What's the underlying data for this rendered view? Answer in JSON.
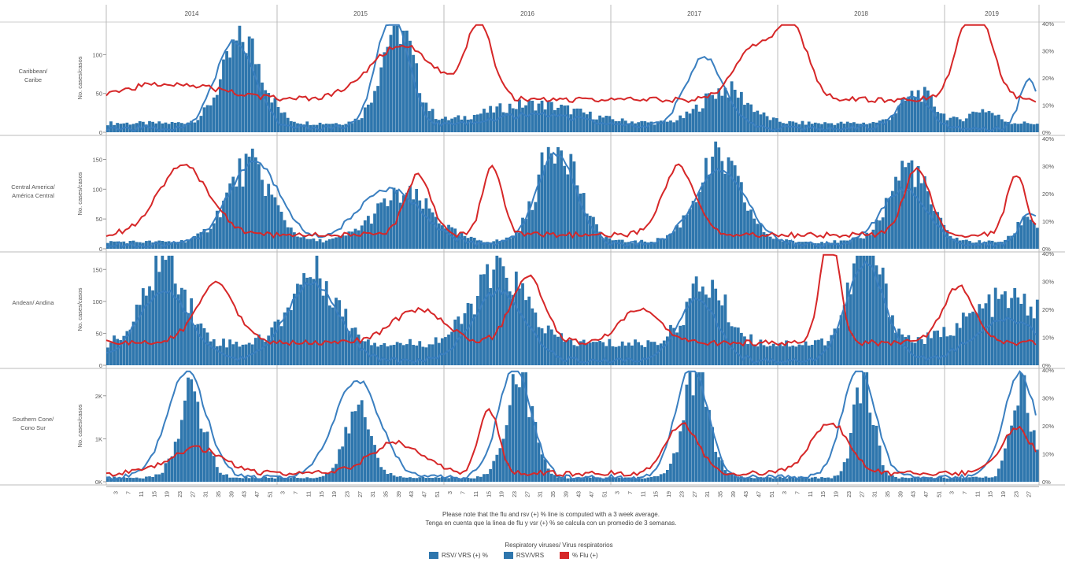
{
  "footnote": {
    "line_en": "Please note that the flu and rsv (+) % line is computed with a 3 week average.",
    "line_es": "Tenga en cuenta que la linea de flu y vsr (+) % se calcula con un promedio de 3 semanas."
  },
  "legend": {
    "title": "Respiratory viruses/ Virus respiratorios",
    "items": [
      {
        "label": "RSV/ VRS (+) %",
        "color": "#2e76ad"
      },
      {
        "label": "RSV/VRS",
        "color": "#2e76ad"
      },
      {
        "label": "% Flu (+)",
        "color": "#d62728"
      }
    ]
  },
  "colors": {
    "bars": "#2e76ad",
    "rsv_line": "#3a7fc0",
    "flu_line": "#d62728"
  },
  "chart_data": {
    "type": "bar",
    "years": [
      "2014",
      "2015",
      "2016",
      "2017",
      "2018",
      "2019"
    ],
    "week_ticks": [
      "3",
      "7",
      "11",
      "15",
      "19",
      "23",
      "27",
      "31",
      "35",
      "39",
      "43",
      "47",
      "51"
    ],
    "week_ticks_2019": [
      "3",
      "7",
      "11",
      "15",
      "19",
      "23",
      "27"
    ],
    "right_axis_ticks": [
      "0%",
      "10%",
      "20%",
      "30%",
      "40%"
    ],
    "panels": [
      {
        "region": [
          "Caribbean/",
          "Caribe"
        ],
        "ylabel": "No. cases/casos",
        "yticks": [
          "0",
          "50",
          "100"
        ],
        "ymax": 140,
        "bar_peaks": [
          [
            2014,
            42,
            110,
            6
          ],
          [
            2015,
            38,
            130,
            5
          ],
          [
            2016,
            28,
            25,
            14
          ],
          [
            2017,
            36,
            45,
            7
          ],
          [
            2018,
            44,
            40,
            5
          ],
          [
            2019,
            12,
            18,
            4
          ]
        ],
        "bar_base": 12,
        "rsv_pct_peaks": [
          [
            2014,
            40,
            32,
            6
          ],
          [
            2015,
            37,
            42,
            5
          ],
          [
            2016,
            30,
            5,
            15
          ],
          [
            2017,
            30,
            26,
            6
          ],
          [
            2018,
            43,
            12,
            5
          ],
          [
            2019,
            27,
            18,
            3
          ]
        ],
        "flu_pct_peaks": [
          [
            2014,
            20,
            6,
            15
          ],
          [
            2015,
            40,
            20,
            10
          ],
          [
            2016,
            12,
            28,
            4
          ],
          [
            2017,
            45,
            18,
            6
          ],
          [
            2018,
            5,
            27,
            5
          ],
          [
            2019,
            10,
            37,
            5
          ]
        ],
        "flu_base": 12
      },
      {
        "region": [
          "Central America/",
          "América Central"
        ],
        "ylabel": "No. cases/casos",
        "yticks": [
          "0",
          "50",
          "100",
          "150"
        ],
        "ymax": 185,
        "bar_peaks": [
          [
            2014,
            44,
            130,
            7
          ],
          [
            2015,
            40,
            80,
            9
          ],
          [
            2016,
            36,
            175,
            6
          ],
          [
            2017,
            34,
            140,
            7
          ],
          [
            2018,
            41,
            130,
            6
          ],
          [
            2019,
            26,
            45,
            3
          ]
        ],
        "bar_base": 12,
        "rsv_pct_peaks": [
          [
            2014,
            46,
            30,
            8
          ],
          [
            2015,
            36,
            20,
            10
          ],
          [
            2016,
            36,
            33,
            6
          ],
          [
            2017,
            35,
            27,
            8
          ],
          [
            2018,
            40,
            20,
            7
          ],
          [
            2019,
            27,
            12,
            3
          ]
        ],
        "flu_pct_peaks": [
          [
            2014,
            24,
            25,
            8
          ],
          [
            2015,
            45,
            22,
            4
          ],
          [
            2016,
            16,
            25,
            3
          ],
          [
            2017,
            22,
            25,
            5
          ],
          [
            2018,
            44,
            24,
            4
          ],
          [
            2019,
            23,
            22,
            3
          ]
        ],
        "flu_base": 5
      },
      {
        "region": [
          "Andean/  Andina"
        ],
        "ylabel": "No. cases/casos",
        "yticks": [
          "0",
          "50",
          "100",
          "150"
        ],
        "ymax": 175,
        "bar_peaks": [
          [
            2014,
            18,
            140,
            6
          ],
          [
            2015,
            12,
            115,
            7
          ],
          [
            2016,
            18,
            115,
            8
          ],
          [
            2017,
            30,
            95,
            6
          ],
          [
            2018,
            28,
            160,
            5
          ],
          [
            2019,
            20,
            70,
            12
          ]
        ],
        "bar_base": 35,
        "rsv_pct_peaks": [
          [
            2014,
            18,
            25,
            8
          ],
          [
            2015,
            12,
            28,
            8
          ],
          [
            2016,
            18,
            25,
            8
          ],
          [
            2017,
            28,
            22,
            6
          ],
          [
            2018,
            28,
            35,
            6
          ],
          [
            2019,
            20,
            15,
            10
          ]
        ],
        "flu_pct_peaks": [
          [
            2014,
            34,
            21,
            6
          ],
          [
            2015,
            45,
            12,
            8
          ],
          [
            2016,
            27,
            24,
            5
          ],
          [
            2017,
            10,
            12,
            6
          ],
          [
            2018,
            17,
            40,
            3
          ],
          [
            2019,
            5,
            20,
            5
          ]
        ],
        "flu_base": 8
      },
      {
        "region": [
          "Southern Cone/",
          "Cono Sur"
        ],
        "ylabel": "No. cases/casos",
        "yticks": [
          "0K",
          "1K",
          "2K"
        ],
        "ymax": 2600,
        "bar_peaks": [
          [
            2014,
            26,
            2000,
            4
          ],
          [
            2015,
            26,
            1650,
            4
          ],
          [
            2016,
            24,
            2500,
            4
          ],
          [
            2017,
            27,
            2450,
            4
          ],
          [
            2018,
            27,
            2450,
            3
          ],
          [
            2019,
            24,
            2350,
            3
          ]
        ],
        "bar_base": 100,
        "rsv_pct_peaks": [
          [
            2014,
            25,
            38,
            6
          ],
          [
            2015,
            26,
            35,
            7
          ],
          [
            2016,
            23,
            40,
            5
          ],
          [
            2017,
            26,
            40,
            5
          ],
          [
            2018,
            26,
            40,
            5
          ],
          [
            2019,
            24,
            37,
            5
          ]
        ],
        "flu_pct_peaks": [
          [
            2014,
            28,
            9,
            8
          ],
          [
            2015,
            38,
            11,
            8
          ],
          [
            2016,
            15,
            23,
            3
          ],
          [
            2017,
            23,
            18,
            5
          ],
          [
            2018,
            17,
            18,
            6
          ],
          [
            2019,
            23,
            16,
            5
          ]
        ],
        "flu_base": 3
      }
    ]
  }
}
